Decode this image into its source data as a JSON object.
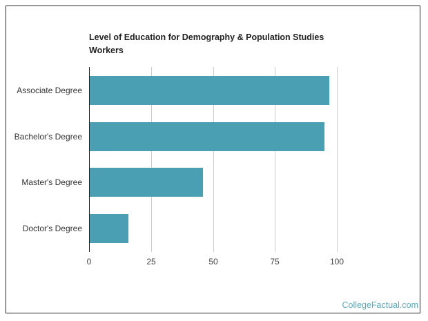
{
  "chart_data": {
    "type": "bar",
    "orientation": "horizontal",
    "title": "Level of Education for Demography & Population Studies Workers",
    "categories": [
      "Associate Degree",
      "Bachelor's Degree",
      "Master's Degree",
      "Doctor's Degree"
    ],
    "values": [
      97,
      95,
      46,
      16
    ],
    "xlabel": "",
    "ylabel": "",
    "xlim": [
      0,
      100
    ],
    "xticks": [
      0,
      25,
      50,
      75,
      100
    ],
    "grid": true,
    "legend": null,
    "bar_color": "#4aa0b2"
  },
  "chart": {
    "title": "Level of Education for Demography & Population Studies Workers",
    "tick_labels": [
      "0",
      "25",
      "50",
      "75",
      "100"
    ]
  },
  "footer": {
    "source": "CollegeFactual.com"
  }
}
